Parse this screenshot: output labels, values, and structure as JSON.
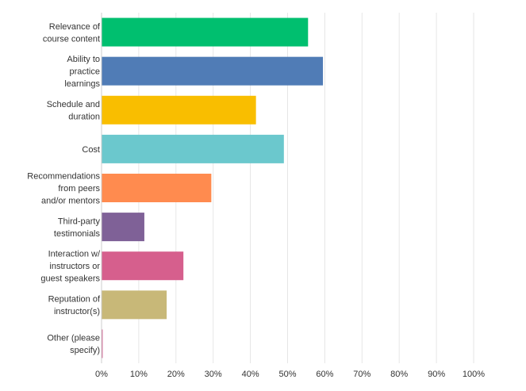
{
  "chart_data": {
    "type": "bar",
    "orientation": "horizontal",
    "categories": [
      [
        "Relevance of",
        "course content"
      ],
      [
        "Ability to",
        "practice",
        "learnings"
      ],
      [
        "Schedule and",
        "duration"
      ],
      [
        "Cost"
      ],
      [
        "Recommendations",
        "from peers",
        "and/or mentors"
      ],
      [
        "Third-party",
        "testimonials"
      ],
      [
        "Interaction w/",
        "instructors or",
        "guest speakers"
      ],
      [
        "Reputation of",
        "instructor(s)"
      ],
      [
        "Other (please",
        "specify)"
      ]
    ],
    "values": [
      55.5,
      59.5,
      41.5,
      49,
      29.5,
      11.5,
      22,
      17.5,
      0.3
    ],
    "colors": [
      "#00bf6f",
      "#507cb6",
      "#f9be00",
      "#6bc8cd",
      "#ff8b4f",
      "#7f6197",
      "#d65f8d",
      "#c8b878",
      "#d25f90"
    ],
    "x_ticks": [
      "0%",
      "10%",
      "20%",
      "30%",
      "40%",
      "50%",
      "60%",
      "70%",
      "80%",
      "90%",
      "100%"
    ],
    "xlim": [
      0,
      100
    ],
    "unit": "%",
    "grid": true,
    "title": "",
    "xlabel": "",
    "ylabel": ""
  }
}
